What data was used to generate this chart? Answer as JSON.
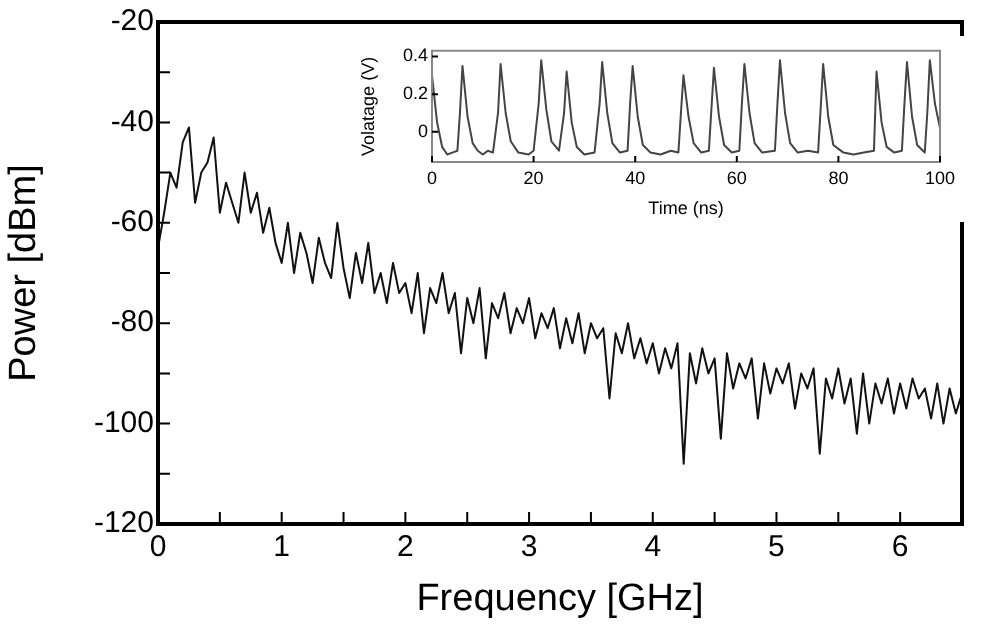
{
  "chart_data": [
    {
      "type": "line",
      "xlabel": "Frequency [GHz]",
      "ylabel": "Power [dBm]",
      "xlim": [
        0,
        6.5
      ],
      "ylim": [
        -120,
        -20
      ],
      "xticks": [
        0,
        {
          "value": 0.5,
          "label": null
        },
        1,
        {
          "value": 1.5,
          "label": null
        },
        2,
        {
          "value": 2.5,
          "label": null
        },
        3,
        {
          "value": 3.5,
          "label": null
        },
        4,
        {
          "value": 4.5,
          "label": null
        },
        5,
        {
          "value": 5.5,
          "label": null
        },
        6
      ],
      "yticks": [
        -120,
        {
          "value": -110,
          "label": null
        },
        -100,
        {
          "value": -90,
          "label": null
        },
        -80,
        {
          "value": -70,
          "label": null
        },
        -60,
        {
          "value": -50,
          "label": null
        },
        -40,
        {
          "value": -30,
          "label": null
        },
        -20
      ],
      "grid": false,
      "legend": false,
      "marker": "none",
      "line_style": "solid",
      "series": [
        {
          "color": "#111111",
          "x": [
            0,
            0.05,
            0.1,
            0.15,
            0.2,
            0.25,
            0.3,
            0.35,
            0.4,
            0.45,
            0.5,
            0.55,
            0.6,
            0.65,
            0.7,
            0.75,
            0.8,
            0.85,
            0.9,
            0.95,
            1,
            1.05,
            1.1,
            1.15,
            1.2,
            1.25,
            1.3,
            1.35,
            1.4,
            1.45,
            1.5,
            1.55,
            1.6,
            1.65,
            1.7,
            1.75,
            1.8,
            1.85,
            1.9,
            1.95,
            2,
            2.05,
            2.1,
            2.15,
            2.2,
            2.25,
            2.3,
            2.35,
            2.4,
            2.45,
            2.5,
            2.55,
            2.6,
            2.65,
            2.7,
            2.75,
            2.8,
            2.85,
            2.9,
            2.95,
            3,
            3.05,
            3.1,
            3.15,
            3.2,
            3.25,
            3.3,
            3.35,
            3.4,
            3.45,
            3.5,
            3.55,
            3.6,
            3.65,
            3.7,
            3.75,
            3.8,
            3.85,
            3.9,
            3.95,
            4,
            4.05,
            4.1,
            4.15,
            4.2,
            4.25,
            4.3,
            4.35,
            4.4,
            4.45,
            4.5,
            4.55,
            4.6,
            4.65,
            4.7,
            4.75,
            4.8,
            4.85,
            4.9,
            4.95,
            5,
            5.05,
            5.1,
            5.15,
            5.2,
            5.25,
            5.3,
            5.35,
            5.4,
            5.45,
            5.5,
            5.55,
            5.6,
            5.65,
            5.7,
            5.75,
            5.8,
            5.85,
            5.9,
            5.95,
            6,
            6.05,
            6.1,
            6.15,
            6.2,
            6.25,
            6.3,
            6.35,
            6.4,
            6.45,
            6.5
          ],
          "values": [
            -65,
            -58,
            -50,
            -53,
            -44,
            -41,
            -56,
            -50,
            -48,
            -43,
            -58,
            -52,
            -56,
            -60,
            -50,
            -58,
            -54,
            -62,
            -57,
            -64,
            -68,
            -60,
            -70,
            -62,
            -66,
            -72,
            -63,
            -68,
            -71,
            -60,
            -69,
            -75,
            -66,
            -72,
            -64,
            -74,
            -70,
            -76,
            -68,
            -74,
            -72,
            -78,
            -70,
            -82,
            -73,
            -76,
            -70,
            -78,
            -74,
            -86,
            -75,
            -80,
            -73,
            -87,
            -76,
            -79,
            -74,
            -82,
            -77,
            -80,
            -75,
            -83,
            -78,
            -81,
            -77,
            -85,
            -79,
            -84,
            -78,
            -86,
            -80,
            -83,
            -81,
            -95,
            -82,
            -86,
            -80,
            -87,
            -83,
            -88,
            -84,
            -90,
            -85,
            -89,
            -84,
            -108,
            -86,
            -92,
            -85,
            -90,
            -87,
            -103,
            -86,
            -93,
            -88,
            -91,
            -87,
            -99,
            -88,
            -94,
            -89,
            -92,
            -88,
            -97,
            -90,
            -93,
            -89,
            -106,
            -91,
            -95,
            -89,
            -96,
            -91,
            -102,
            -90,
            -100,
            -92,
            -96,
            -91,
            -98,
            -92,
            -97,
            -91,
            -95,
            -93,
            -99,
            -92,
            -100,
            -93,
            -98,
            -94
          ]
        }
      ]
    },
    {
      "type": "line",
      "xlabel": "Time (ns)",
      "ylabel": "Volatage (V)",
      "xlim": [
        0,
        100
      ],
      "ylim": [
        -0.16,
        0.43
      ],
      "xticks": [
        0,
        20,
        40,
        60,
        80,
        100
      ],
      "yticks": [
        0,
        0.2,
        0.4
      ],
      "grid": false,
      "legend": false,
      "marker": "none",
      "line_style": "solid",
      "series": [
        {
          "color": "#444444",
          "x": [
            0,
            1,
            2,
            3,
            4,
            5,
            5.5,
            6,
            7,
            8,
            9,
            10,
            11,
            12,
            13,
            13.5,
            14.5,
            15.5,
            17,
            19,
            20,
            21,
            21.5,
            22.5,
            23.5,
            25,
            26,
            26.5,
            27.5,
            28.5,
            30,
            32,
            33,
            33.5,
            34.5,
            35.5,
            37,
            38.5,
            39,
            39.5,
            40.5,
            41.5,
            43,
            45,
            47,
            48.5,
            49,
            49.5,
            50.5,
            51.5,
            53,
            54.5,
            55,
            55.5,
            56.5,
            57.5,
            59,
            60.5,
            61,
            61.5,
            62.5,
            63.5,
            65,
            67.5,
            68,
            68.5,
            69.5,
            70.5,
            72,
            74,
            76,
            76.5,
            77,
            78,
            79,
            81,
            83,
            85,
            87,
            87.5,
            88.5,
            89.5,
            91,
            92.5,
            93,
            93.5,
            94.5,
            95.5,
            97,
            97.5,
            98,
            99,
            100
          ],
          "values": [
            0.3,
            0.05,
            -0.08,
            -0.12,
            -0.11,
            -0.1,
            0.1,
            0.35,
            0.08,
            -0.06,
            -0.1,
            -0.12,
            -0.1,
            -0.11,
            0.1,
            0.36,
            0.1,
            -0.05,
            -0.11,
            -0.12,
            -0.1,
            0.15,
            0.38,
            0.12,
            -0.05,
            -0.1,
            0.1,
            0.32,
            0.05,
            -0.08,
            -0.12,
            -0.11,
            0.15,
            0.37,
            0.1,
            -0.06,
            -0.11,
            -0.1,
            0.15,
            0.35,
            0.08,
            -0.07,
            -0.11,
            -0.12,
            -0.1,
            -0.11,
            0.1,
            0.3,
            0.08,
            -0.06,
            -0.11,
            -0.1,
            0.12,
            0.34,
            0.08,
            -0.07,
            -0.11,
            -0.1,
            0.15,
            0.36,
            0.1,
            -0.06,
            -0.11,
            -0.1,
            0.15,
            0.38,
            0.1,
            -0.06,
            -0.11,
            -0.1,
            -0.11,
            0.12,
            0.36,
            0.08,
            -0.07,
            -0.11,
            -0.12,
            -0.11,
            -0.1,
            0.32,
            0.05,
            -0.08,
            -0.11,
            -0.1,
            0.15,
            0.37,
            0.08,
            -0.07,
            -0.11,
            0.1,
            0.38,
            0.15,
            0.02
          ]
        }
      ]
    }
  ]
}
